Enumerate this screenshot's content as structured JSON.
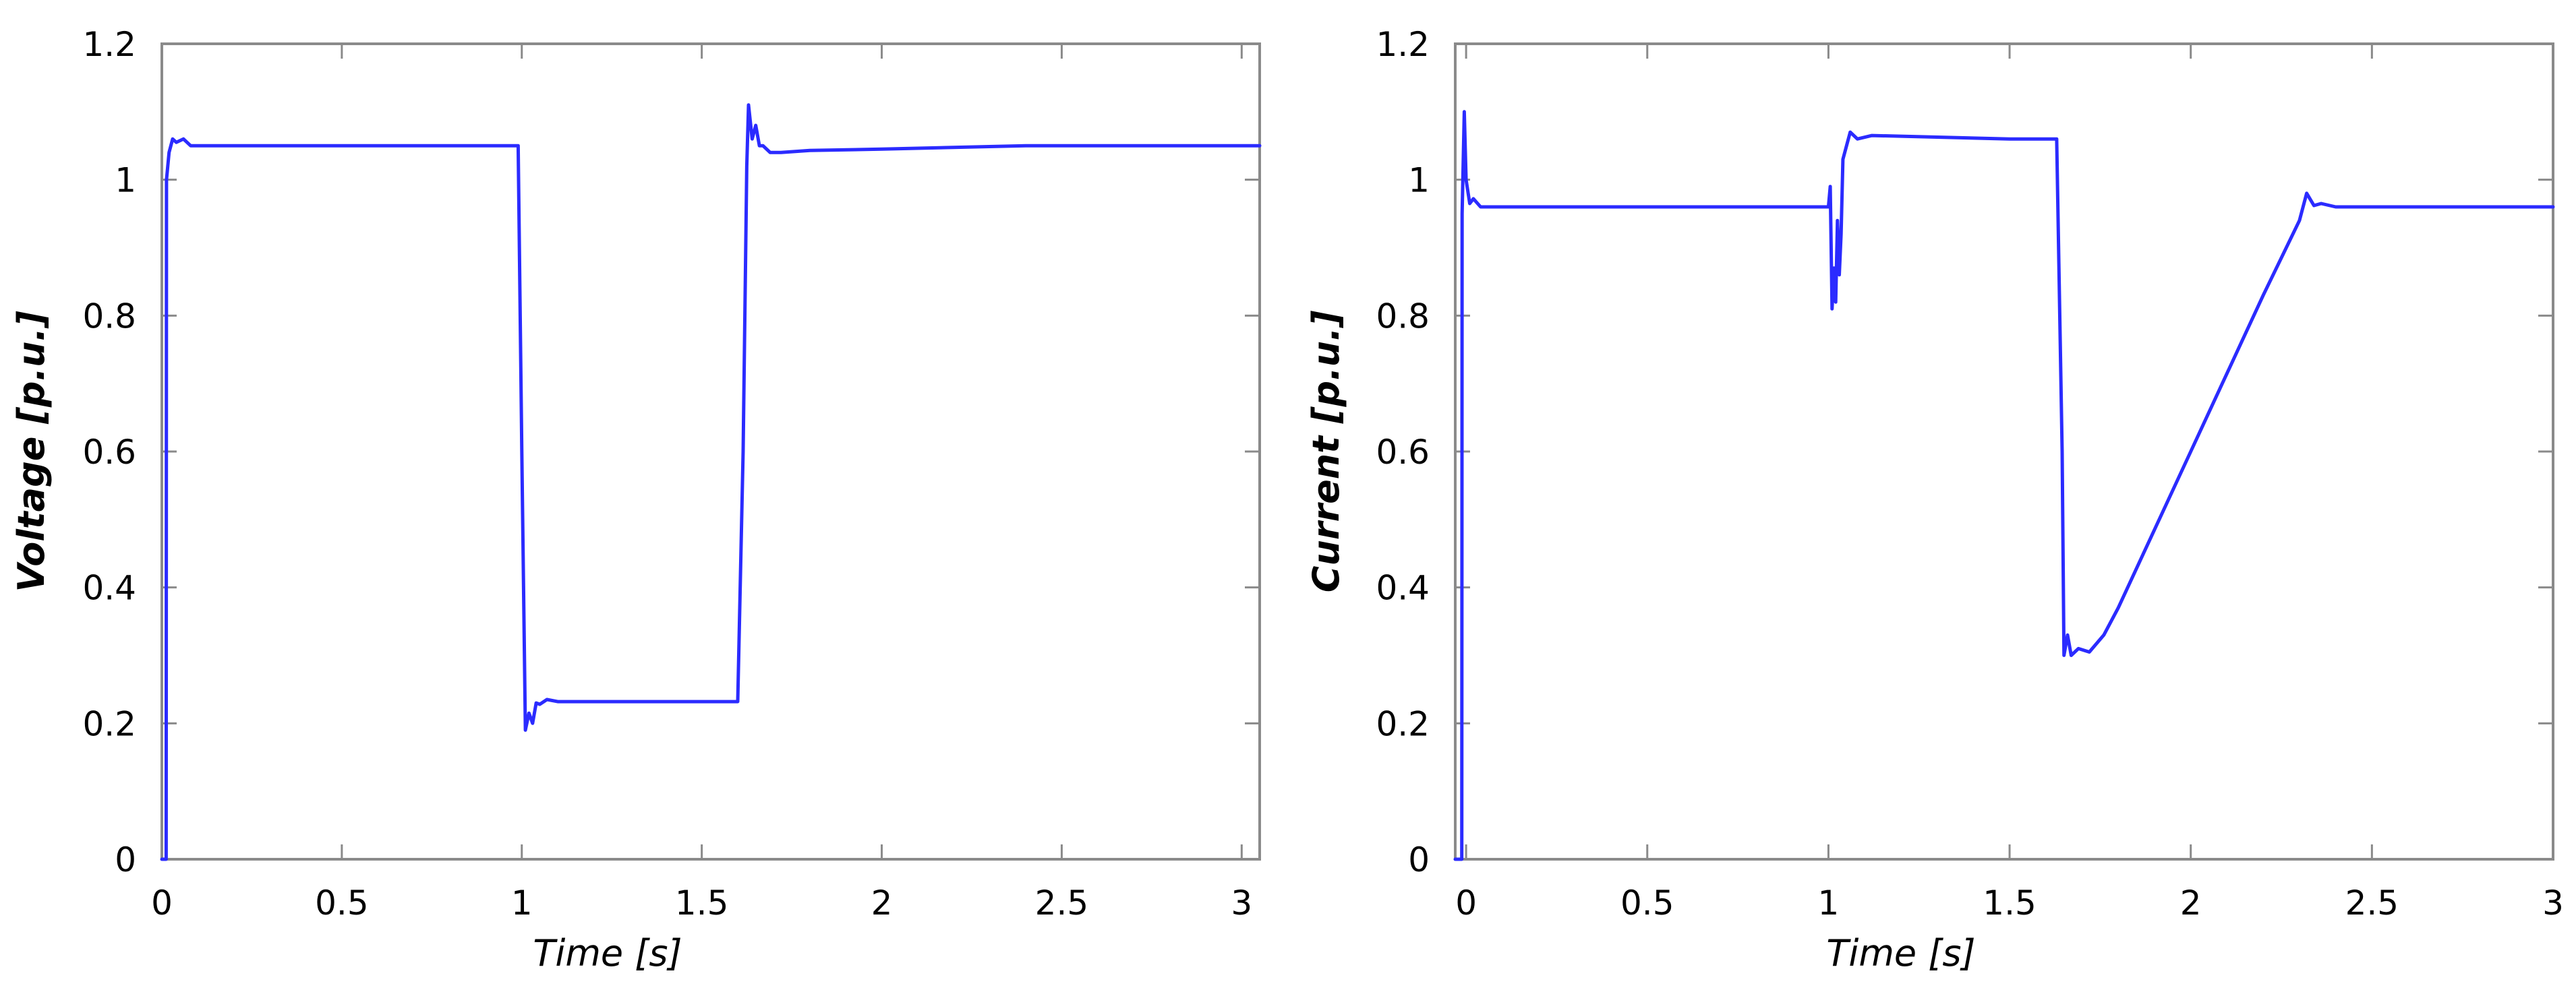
{
  "chart_data": [
    {
      "type": "line",
      "xlabel": "Time [s]",
      "ylabel": "Voltage [p.u.]",
      "xlim": [
        0,
        3.05
      ],
      "ylim": [
        0,
        1.2
      ],
      "xticks": [
        0,
        0.5,
        1,
        1.5,
        2,
        2.5,
        3
      ],
      "xtick_labels": [
        "0",
        "0.5",
        "1",
        "1.5",
        "2",
        "2.5",
        "3"
      ],
      "yticks": [
        0,
        0.2,
        0.4,
        0.6,
        0.8,
        1.0,
        1.2
      ],
      "ytick_labels": [
        "0",
        "0.2",
        "0.4",
        "0.6",
        "0.8",
        "1",
        "1.2"
      ],
      "grid": false,
      "line_color": "#2b2bff",
      "series": [
        {
          "x": [
            0.0,
            0.012,
            0.013,
            0.02,
            0.03,
            0.04,
            0.06,
            0.08,
            0.12,
            0.5,
            0.99,
            1.0,
            1.01,
            1.02,
            1.03,
            1.04,
            1.05,
            1.07,
            1.1,
            1.2,
            1.6,
            1.615,
            1.625,
            1.63,
            1.64,
            1.65,
            1.66,
            1.67,
            1.69,
            1.72,
            1.8,
            2.0,
            2.4,
            3.05
          ],
          "y": [
            0.0,
            0.0,
            1.0,
            1.04,
            1.06,
            1.055,
            1.06,
            1.05,
            1.05,
            1.05,
            1.05,
            0.6,
            0.19,
            0.215,
            0.2,
            0.23,
            0.228,
            0.235,
            0.232,
            0.232,
            0.232,
            0.6,
            1.02,
            1.11,
            1.06,
            1.08,
            1.05,
            1.05,
            1.04,
            1.04,
            1.043,
            1.045,
            1.05,
            1.05
          ]
        }
      ]
    },
    {
      "type": "line",
      "xlabel": "Time [s]",
      "ylabel": "Current [p.u.]",
      "xlim": [
        -0.03,
        3.0
      ],
      "ylim": [
        0,
        1.2
      ],
      "xticks": [
        0,
        0.5,
        1,
        1.5,
        2,
        2.5,
        3
      ],
      "xtick_labels": [
        "0",
        "0.5",
        "1",
        "1.5",
        "2",
        "2.5",
        "3"
      ],
      "yticks": [
        0,
        0.2,
        0.4,
        0.6,
        0.8,
        1.0,
        1.2
      ],
      "ytick_labels": [
        "0",
        "0.2",
        "0.4",
        "0.6",
        "0.8",
        "1",
        "1.2"
      ],
      "grid": false,
      "line_color": "#2b2bff",
      "series": [
        {
          "x": [
            -0.03,
            -0.012,
            -0.011,
            -0.005,
            0.0,
            0.01,
            0.02,
            0.04,
            0.08,
            0.5,
            1.0,
            1.005,
            1.01,
            1.015,
            1.02,
            1.025,
            1.03,
            1.035,
            1.04,
            1.05,
            1.06,
            1.08,
            1.12,
            1.5,
            1.63,
            1.645,
            1.65,
            1.66,
            1.67,
            1.69,
            1.72,
            1.76,
            1.8,
            2.0,
            2.2,
            2.3,
            2.32,
            2.34,
            2.36,
            2.4,
            3.0
          ],
          "y": [
            0.0,
            0.0,
            0.95,
            1.1,
            1.0,
            0.965,
            0.972,
            0.96,
            0.96,
            0.96,
            0.96,
            0.99,
            0.81,
            0.87,
            0.82,
            0.94,
            0.86,
            0.92,
            1.03,
            1.05,
            1.07,
            1.06,
            1.065,
            1.06,
            1.06,
            0.6,
            0.3,
            0.33,
            0.3,
            0.31,
            0.305,
            0.33,
            0.37,
            0.6,
            0.83,
            0.94,
            0.98,
            0.962,
            0.965,
            0.96,
            0.96
          ]
        }
      ]
    }
  ]
}
